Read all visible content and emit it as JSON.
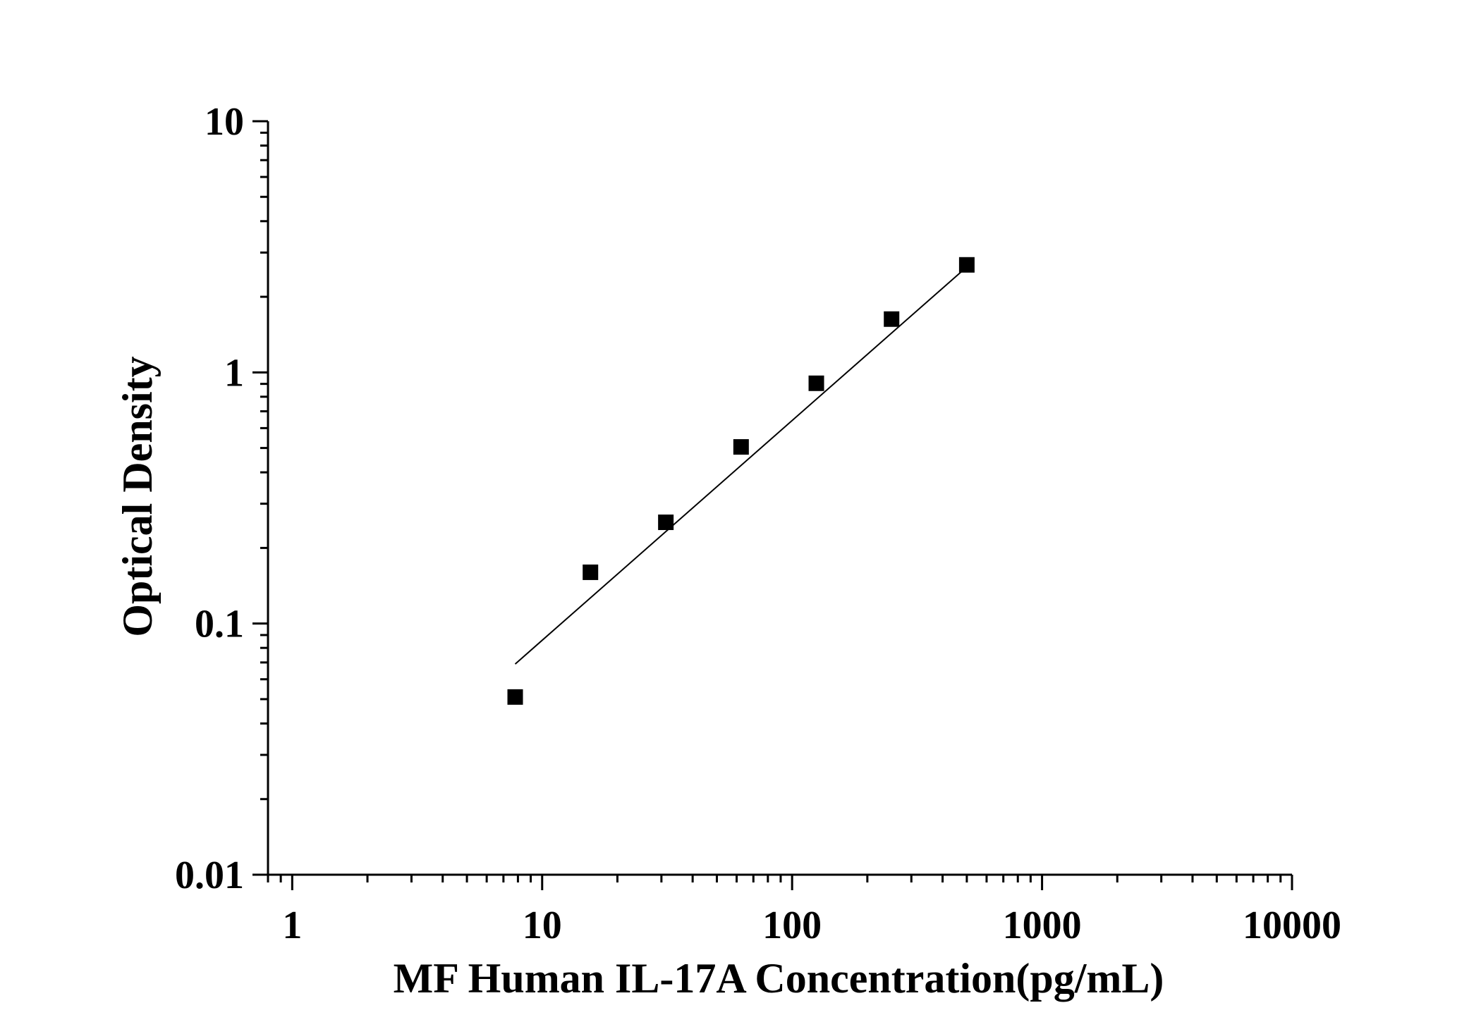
{
  "chart_data": {
    "type": "scatter",
    "title": "",
    "xlabel": "MF Human IL-17A Concentration(pg/mL)",
    "ylabel": "Optical Density",
    "x_scale": "log",
    "y_scale": "log",
    "xlim": [
      0.8,
      10000
    ],
    "ylim": [
      0.01,
      10
    ],
    "x_ticks": [
      {
        "value": 1,
        "label": "1"
      },
      {
        "value": 10,
        "label": "10"
      },
      {
        "value": 100,
        "label": "100"
      },
      {
        "value": 1000,
        "label": "1000"
      },
      {
        "value": 10000,
        "label": "10000"
      }
    ],
    "y_ticks": [
      {
        "value": 0.01,
        "label": "0.01"
      },
      {
        "value": 0.1,
        "label": "0.1"
      },
      {
        "value": 1,
        "label": "1"
      },
      {
        "value": 10,
        "label": "10"
      }
    ],
    "grid": false,
    "legend": "none",
    "series": [
      {
        "marker": "square",
        "color": "#000000",
        "points": [
          {
            "x": 7.8,
            "y": 0.051
          },
          {
            "x": 15.6,
            "y": 0.16
          },
          {
            "x": 31.25,
            "y": 0.253
          },
          {
            "x": 62.5,
            "y": 0.505
          },
          {
            "x": 125,
            "y": 0.905
          },
          {
            "x": 250,
            "y": 1.63
          },
          {
            "x": 500,
            "y": 2.68
          }
        ]
      }
    ],
    "fit_line": {
      "color": "#000000",
      "points": [
        {
          "x": 7.8,
          "y": 0.069
        },
        {
          "x": 500,
          "y": 2.63
        }
      ]
    }
  }
}
